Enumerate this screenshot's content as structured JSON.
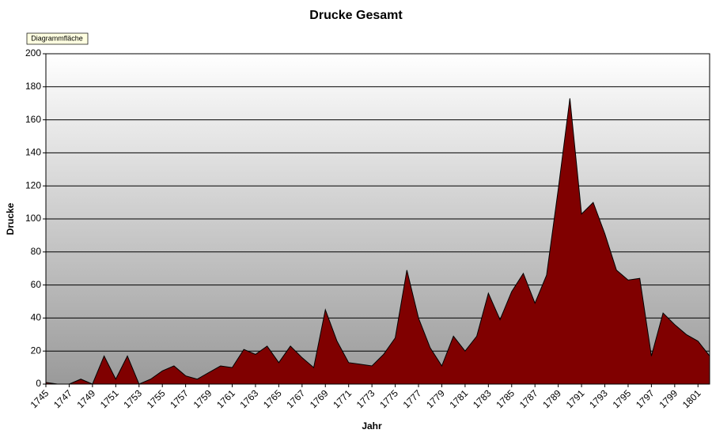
{
  "chart_data": {
    "type": "area",
    "title": "Drucke Gesamt",
    "tooltip": "Diagrammfläche",
    "x_label": "Jahr",
    "y_label": "Drucke",
    "categories": [
      "1745",
      null,
      "1747",
      null,
      "1749",
      null,
      "1751",
      null,
      "1753",
      null,
      "1755",
      null,
      "1757",
      null,
      "1759",
      null,
      "1761",
      null,
      "1763",
      null,
      "1765",
      null,
      "1767",
      null,
      "1769",
      null,
      "1771",
      null,
      "1773",
      null,
      "1775",
      null,
      "1777",
      null,
      "1779",
      null,
      "1781",
      null,
      "1783",
      null,
      "1785",
      null,
      "1787",
      null,
      "1789",
      null,
      "1791",
      null,
      "1793",
      null,
      "1795",
      null,
      "1797",
      null,
      "1799",
      null,
      "1801",
      null
    ],
    "values": [
      1,
      0,
      0,
      3,
      0,
      17,
      3,
      17,
      0,
      3,
      8,
      11,
      5,
      3,
      7,
      11,
      10,
      21,
      18,
      23,
      13,
      23,
      16,
      10,
      45,
      26,
      13,
      12,
      11,
      18,
      28,
      69,
      40,
      22,
      11,
      29,
      20,
      29,
      55,
      39,
      56,
      67,
      49,
      66,
      118,
      173,
      103,
      110,
      91,
      69,
      63,
      64,
      17,
      43,
      36,
      30,
      26,
      17
    ],
    "color": "#800000",
    "ylim": [
      0,
      200
    ],
    "yticks": [
      0,
      20,
      40,
      60,
      80,
      100,
      120,
      140,
      160,
      180,
      200
    ],
    "grid": true
  }
}
